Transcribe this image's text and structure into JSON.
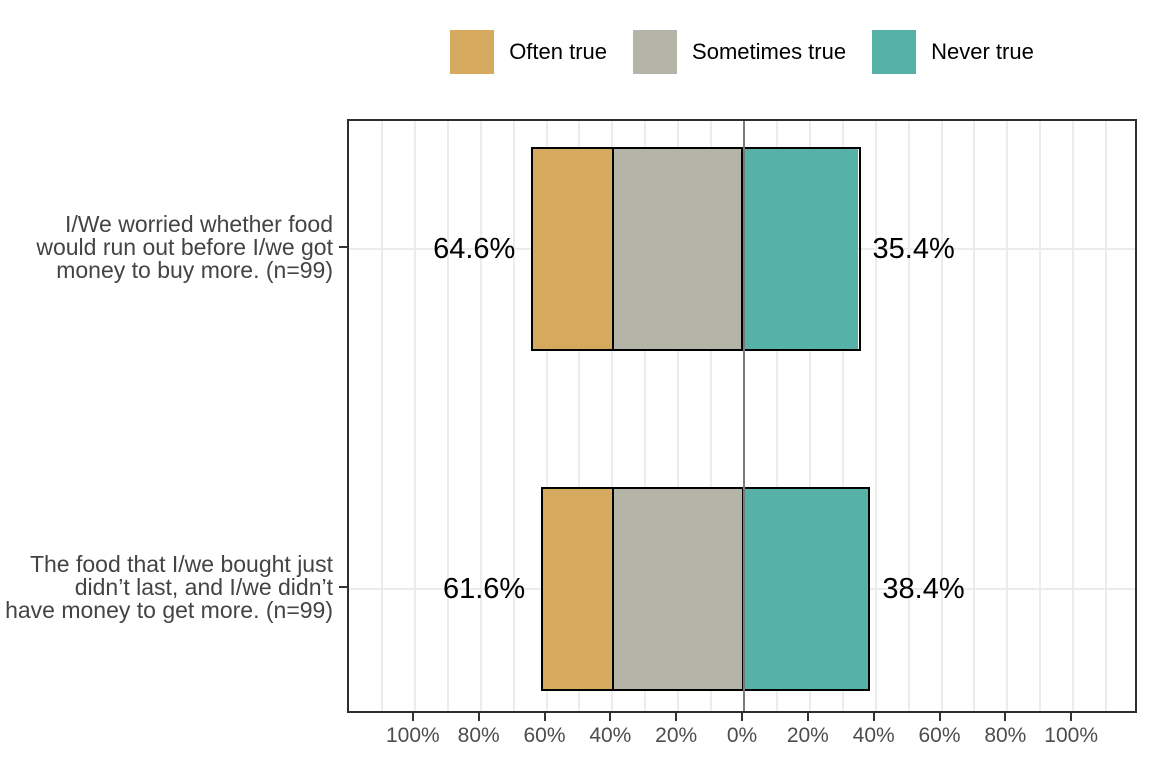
{
  "chart_data": {
    "type": "bar",
    "subtype": "diverging-stacked-horizontal",
    "title": "",
    "legend": {
      "position": "top",
      "entries": [
        {
          "label": "Often true",
          "color": "#D5AA5E"
        },
        {
          "label": "Sometimes true",
          "color": "#B4B4A9"
        },
        {
          "label": "Never true",
          "color": "#56B1A6"
        }
      ]
    },
    "rows": [
      {
        "label_lines": [
          "I/We worried whether food",
          "would run out before I/we got",
          "money to buy more. (n=99)"
        ],
        "values": {
          "often_true": 24.2,
          "sometimes_true": 40.4,
          "never_true": 35.4
        },
        "left_total_label": "64.6%",
        "right_total_label": "35.4%"
      },
      {
        "label_lines": [
          "The food that I/we bought just",
          "didn’t last, and I/we didn’t",
          "have money to get more. (n=99)"
        ],
        "values": {
          "often_true": 21.2,
          "sometimes_true": 40.4,
          "never_true": 38.4
        },
        "left_total_label": "61.6%",
        "right_total_label": "38.4%"
      }
    ],
    "x_axis": {
      "range": [
        -120,
        120
      ],
      "major_ticks": [
        {
          "value": -100,
          "label": "100%"
        },
        {
          "value": -80,
          "label": "80%"
        },
        {
          "value": -60,
          "label": "60%"
        },
        {
          "value": -40,
          "label": "40%"
        },
        {
          "value": -20,
          "label": "20%"
        },
        {
          "value": 0,
          "label": "0%"
        },
        {
          "value": 20,
          "label": "20%"
        },
        {
          "value": 40,
          "label": "40%"
        },
        {
          "value": 60,
          "label": "60%"
        },
        {
          "value": 80,
          "label": "80%"
        },
        {
          "value": 100,
          "label": "100%"
        }
      ],
      "minor_step": 10,
      "zero_line_value": 0
    },
    "colors": {
      "often_true": "#D5AA5E",
      "sometimes_true": "#B4B4A9",
      "never_true": "#56B1A6",
      "zero_line": "#7b7b7b",
      "panel_border": "#2e2e2e",
      "gridline": "#ececec",
      "axis_text": "#4d4d4d",
      "bar_outline": "#000000",
      "value_label": "#000000"
    },
    "grid": true,
    "stack_order_from_zero_leftward": [
      "sometimes_true",
      "often_true"
    ],
    "stack_order_from_zero_rightward": [
      "never_true"
    ]
  }
}
